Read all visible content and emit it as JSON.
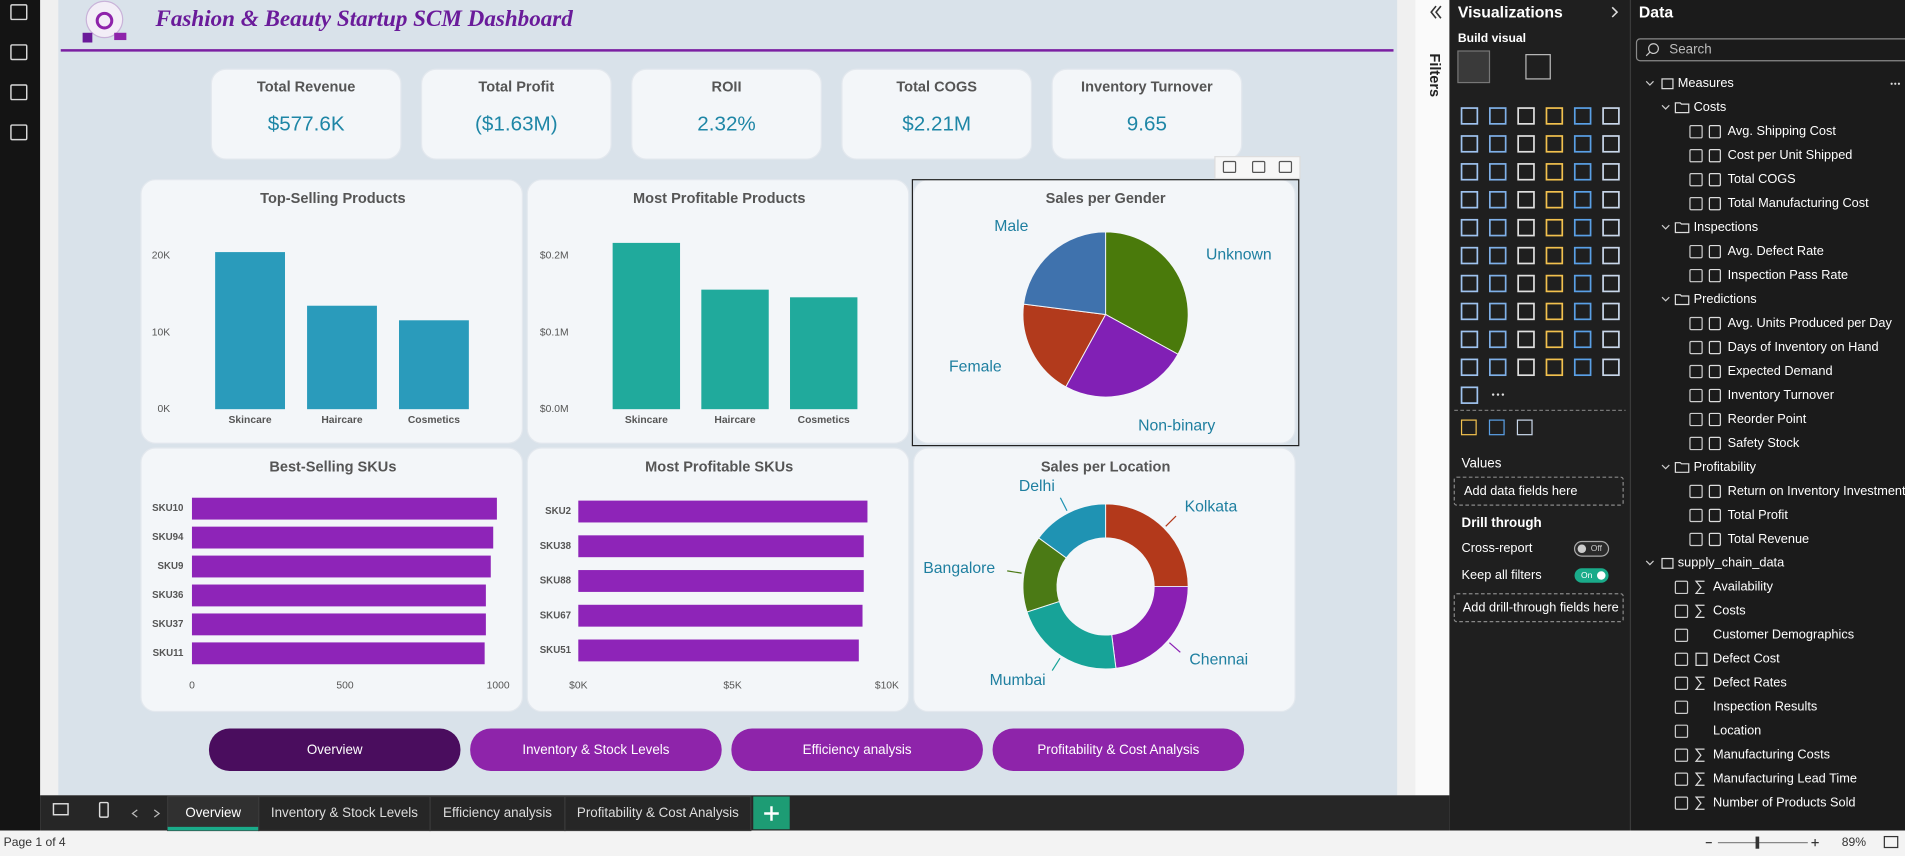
{
  "report": {
    "title": "Fashion & Beauty Startup SCM Dashboard",
    "kpis": [
      {
        "label": "Total Revenue",
        "value": "$577.6K"
      },
      {
        "label": "Total Profit",
        "value": "($1.63M)"
      },
      {
        "label": "ROII",
        "value": "2.32%"
      },
      {
        "label": "Total COGS",
        "value": "$2.21M"
      },
      {
        "label": "Inventory Turnover",
        "value": "9.65"
      }
    ],
    "buttons": [
      "Overview",
      "Inventory & Stock Levels",
      "Efficiency analysis",
      "Profitability & Cost Analysis"
    ]
  },
  "chart_data": [
    {
      "type": "bar",
      "title": "Top-Selling Products",
      "categories": [
        "Skincare",
        "Haircare",
        "Cosmetics"
      ],
      "values": [
        20500,
        13500,
        11600
      ],
      "color": "#2a9bbb",
      "ylim": [
        0,
        22500
      ],
      "yticks": [
        {
          "value": 0,
          "label": "0K"
        },
        {
          "value": 10000,
          "label": "10K"
        },
        {
          "value": 20000,
          "label": "20K"
        }
      ]
    },
    {
      "type": "bar",
      "title": "Most Profitable Products",
      "categories": [
        "Skincare",
        "Haircare",
        "Cosmetics"
      ],
      "values": [
        217000,
        156000,
        146000
      ],
      "color": "#20aa9c",
      "ylim": [
        0,
        225000
      ],
      "yticks": [
        {
          "value": 0,
          "label": "$0.0M"
        },
        {
          "value": 100000,
          "label": "$0.1M"
        },
        {
          "value": 200000,
          "label": "$0.2M"
        }
      ]
    },
    {
      "type": "pie",
      "title": "Sales per Gender",
      "categories": [
        "Unknown",
        "Non-binary",
        "Female",
        "Male"
      ],
      "values": [
        33,
        25,
        19,
        23
      ],
      "colors": [
        "#4a7a0b",
        "#8120b5",
        "#b23a1c",
        "#3f72ad"
      ]
    },
    {
      "type": "bar",
      "orientation": "horizontal",
      "title": "Best-Selling SKUs",
      "categories": [
        "SKU10",
        "SKU94",
        "SKU9",
        "SKU36",
        "SKU37",
        "SKU11"
      ],
      "values": [
        996,
        984,
        976,
        960,
        960,
        956
      ],
      "color": "#8e24b8",
      "xlim": [
        0,
        1000
      ],
      "xticks": [
        0,
        500,
        1000
      ]
    },
    {
      "type": "bar",
      "orientation": "horizontal",
      "title": "Most Profitable SKUs",
      "categories": [
        "SKU2",
        "SKU38",
        "SKU88",
        "SKU67",
        "SKU51"
      ],
      "values": [
        9370,
        9250,
        9250,
        9210,
        9090
      ],
      "color": "#8e24b8",
      "xlim": [
        0,
        10000
      ],
      "xticks": [
        {
          "value": 0,
          "label": "$0K"
        },
        {
          "value": 5000,
          "label": "$5K"
        },
        {
          "value": 10000,
          "label": "$10K"
        }
      ]
    },
    {
      "type": "donut",
      "title": "Sales per Location",
      "categories": [
        "Kolkata",
        "Chennai",
        "Mumbai",
        "Bangalore",
        "Delhi"
      ],
      "values": [
        25,
        23,
        22,
        15,
        15
      ],
      "colors": [
        "#b3391b",
        "#8a1fb3",
        "#17a398",
        "#4b7a15",
        "#1f93b3"
      ]
    }
  ],
  "filters_pane": {
    "title": "Filters"
  },
  "visualizations": {
    "title": "Visualizations",
    "subtitle": "Build visual",
    "values_label": "Values",
    "values_placeholder": "Add data fields here",
    "drill_title": "Drill through",
    "cross_report": "Cross-report",
    "cross_report_state": "Off",
    "keep_filters": "Keep all filters",
    "keep_filters_state": "On",
    "drill_placeholder": "Add drill-through fields here"
  },
  "data_pane": {
    "title": "Data",
    "search": "Search",
    "tables": [
      {
        "label": "Measures",
        "folders": [
          {
            "label": "Costs",
            "fields": [
              "Avg. Shipping Cost",
              "Cost per Unit Shipped",
              "Total COGS",
              "Total Manufacturing Cost"
            ]
          },
          {
            "label": "Inspections",
            "fields": [
              "Avg. Defect Rate",
              "Inspection Pass Rate"
            ]
          },
          {
            "label": "Predictions",
            "fields": [
              "Avg. Units Produced per Day",
              "Days of Inventory on Hand",
              "Expected Demand",
              "Inventory Turnover",
              "Reorder Point",
              "Safety Stock"
            ]
          },
          {
            "label": "Profitability",
            "fields": [
              "Return on Inventory Investment...",
              "Total Profit",
              "Total Revenue"
            ]
          }
        ]
      },
      {
        "label": "supply_chain_data",
        "fields": [
          "Availability",
          "Costs",
          "Customer Demographics",
          "Defect Cost",
          "Defect Rates",
          "Inspection Results",
          "Location",
          "Manufacturing Costs",
          "Manufacturing Lead Time",
          "Number of Products Sold"
        ]
      }
    ]
  },
  "page_tabs": [
    "Overview",
    "Inventory & Stock Levels",
    "Efficiency analysis",
    "Profitability & Cost Analysis"
  ],
  "status": {
    "page": "Page 1 of 4",
    "zoom": "89%"
  }
}
